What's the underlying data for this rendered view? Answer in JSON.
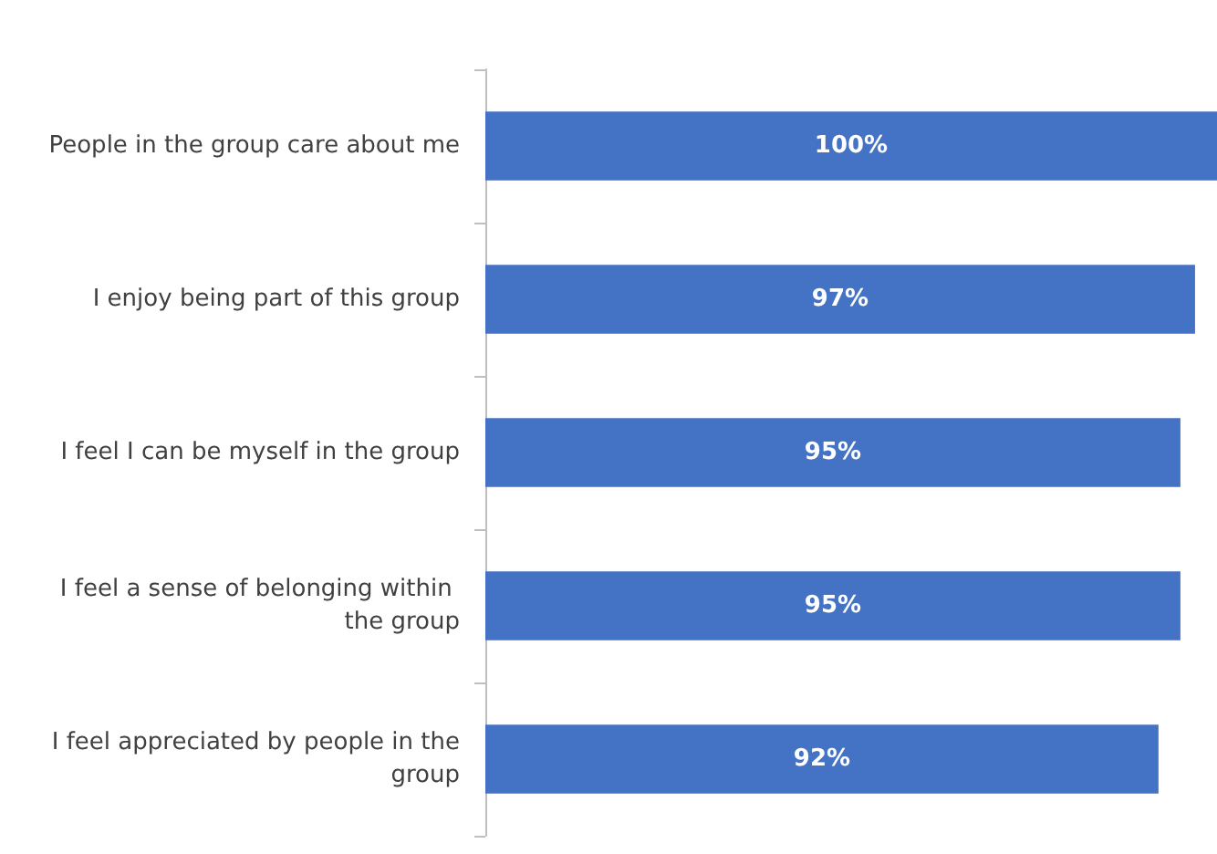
{
  "chart_data": {
    "type": "bar",
    "orientation": "horizontal",
    "categories": [
      "People in the group care about me",
      "I enjoy being part of this group",
      "I feel I can be myself in the group",
      "I feel a sense of belonging within the group",
      "I feel appreciated by people in the group"
    ],
    "values": [
      100,
      97,
      95,
      95,
      92
    ],
    "value_labels": [
      "100%",
      "97%",
      "95%",
      "95%",
      "92%"
    ],
    "color": "#4472c4",
    "tick_labels": "y"
  }
}
